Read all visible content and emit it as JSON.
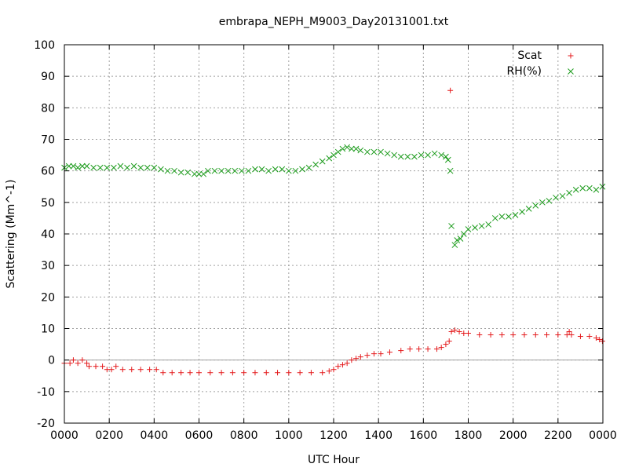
{
  "chart_data": {
    "type": "scatter",
    "title": "embrapa_NEPH_M9003_Day20131001.txt",
    "xlabel": "UTC Hour",
    "ylabel": "Scattering (Mm^-1)",
    "xlim": [
      0,
      2400
    ],
    "ylim": [
      -20,
      100
    ],
    "x_ticks": [
      "0000",
      "0200",
      "0400",
      "0600",
      "0800",
      "1000",
      "1200",
      "1400",
      "1600",
      "1800",
      "2000",
      "2200",
      "0000"
    ],
    "y_ticks": [
      "-20",
      "-10",
      "0",
      "10",
      "20",
      "30",
      "40",
      "50",
      "60",
      "70",
      "80",
      "90",
      "100"
    ],
    "grid": true,
    "legend_position": "top-right",
    "series": [
      {
        "name": "Scat",
        "marker": "+",
        "color": "#e41a1c",
        "points": [
          [
            0,
            -1
          ],
          [
            25,
            -1
          ],
          [
            40,
            0
          ],
          [
            60,
            -1
          ],
          [
            80,
            0
          ],
          [
            100,
            -1
          ],
          [
            110,
            -2
          ],
          [
            140,
            -2
          ],
          [
            170,
            -2
          ],
          [
            190,
            -3
          ],
          [
            210,
            -3
          ],
          [
            230,
            -2
          ],
          [
            260,
            -3
          ],
          [
            300,
            -3
          ],
          [
            340,
            -3
          ],
          [
            380,
            -3
          ],
          [
            410,
            -3
          ],
          [
            440,
            -4
          ],
          [
            480,
            -4
          ],
          [
            520,
            -4
          ],
          [
            560,
            -4
          ],
          [
            600,
            -4
          ],
          [
            650,
            -4
          ],
          [
            700,
            -4
          ],
          [
            750,
            -4
          ],
          [
            800,
            -4
          ],
          [
            850,
            -4
          ],
          [
            900,
            -4
          ],
          [
            950,
            -4
          ],
          [
            1000,
            -4
          ],
          [
            1050,
            -4
          ],
          [
            1100,
            -4
          ],
          [
            1150,
            -4
          ],
          [
            1180,
            -3.5
          ],
          [
            1200,
            -3
          ],
          [
            1220,
            -2
          ],
          [
            1240,
            -1.5
          ],
          [
            1260,
            -1
          ],
          [
            1280,
            0
          ],
          [
            1300,
            0.5
          ],
          [
            1320,
            1
          ],
          [
            1350,
            1.5
          ],
          [
            1380,
            2
          ],
          [
            1410,
            2
          ],
          [
            1450,
            2.5
          ],
          [
            1500,
            3
          ],
          [
            1540,
            3.5
          ],
          [
            1580,
            3.5
          ],
          [
            1620,
            3.5
          ],
          [
            1660,
            3.5
          ],
          [
            1680,
            4
          ],
          [
            1700,
            5
          ],
          [
            1715,
            6
          ],
          [
            1720,
            85.5
          ],
          [
            1725,
            9
          ],
          [
            1740,
            9.5
          ],
          [
            1760,
            9
          ],
          [
            1780,
            8.5
          ],
          [
            1800,
            8.5
          ],
          [
            1850,
            8
          ],
          [
            1900,
            8
          ],
          [
            1950,
            8
          ],
          [
            2000,
            8
          ],
          [
            2050,
            8
          ],
          [
            2100,
            8
          ],
          [
            2150,
            8
          ],
          [
            2200,
            8
          ],
          [
            2240,
            8
          ],
          [
            2250,
            9
          ],
          [
            2260,
            8
          ],
          [
            2300,
            7.5
          ],
          [
            2340,
            7.5
          ],
          [
            2370,
            7
          ],
          [
            2385,
            6.5
          ],
          [
            2398,
            6
          ]
        ]
      },
      {
        "name": "RH(%)",
        "marker": "x",
        "color": "#1a9a1a",
        "points": [
          [
            0,
            61
          ],
          [
            20,
            61.5
          ],
          [
            40,
            61.5
          ],
          [
            60,
            61
          ],
          [
            80,
            61.5
          ],
          [
            100,
            61.5
          ],
          [
            130,
            61
          ],
          [
            160,
            61
          ],
          [
            190,
            61
          ],
          [
            220,
            61
          ],
          [
            250,
            61.5
          ],
          [
            280,
            61
          ],
          [
            310,
            61.5
          ],
          [
            340,
            61
          ],
          [
            370,
            61
          ],
          [
            400,
            61
          ],
          [
            430,
            60.5
          ],
          [
            460,
            60
          ],
          [
            490,
            60
          ],
          [
            520,
            59.5
          ],
          [
            550,
            59.5
          ],
          [
            580,
            59
          ],
          [
            600,
            59
          ],
          [
            620,
            59
          ],
          [
            640,
            60
          ],
          [
            670,
            60
          ],
          [
            700,
            60
          ],
          [
            730,
            60
          ],
          [
            760,
            60
          ],
          [
            790,
            60
          ],
          [
            820,
            60
          ],
          [
            850,
            60.5
          ],
          [
            880,
            60.5
          ],
          [
            910,
            60
          ],
          [
            940,
            60.5
          ],
          [
            970,
            60.5
          ],
          [
            1000,
            60
          ],
          [
            1030,
            60
          ],
          [
            1060,
            60.5
          ],
          [
            1090,
            61
          ],
          [
            1120,
            62
          ],
          [
            1150,
            63
          ],
          [
            1180,
            64
          ],
          [
            1200,
            65
          ],
          [
            1220,
            66
          ],
          [
            1240,
            67
          ],
          [
            1260,
            67.5
          ],
          [
            1280,
            67
          ],
          [
            1300,
            67
          ],
          [
            1320,
            66.5
          ],
          [
            1350,
            66
          ],
          [
            1380,
            66
          ],
          [
            1410,
            66
          ],
          [
            1440,
            65.5
          ],
          [
            1470,
            65
          ],
          [
            1500,
            64.5
          ],
          [
            1530,
            64.5
          ],
          [
            1560,
            64.5
          ],
          [
            1590,
            65
          ],
          [
            1620,
            65
          ],
          [
            1650,
            65.5
          ],
          [
            1680,
            65
          ],
          [
            1700,
            64.5
          ],
          [
            1710,
            63.5
          ],
          [
            1720,
            60
          ],
          [
            1725,
            42.5
          ],
          [
            1740,
            36.5
          ],
          [
            1750,
            38
          ],
          [
            1765,
            38.5
          ],
          [
            1780,
            40
          ],
          [
            1800,
            41.5
          ],
          [
            1830,
            42
          ],
          [
            1860,
            42.5
          ],
          [
            1890,
            43
          ],
          [
            1920,
            45
          ],
          [
            1950,
            45.5
          ],
          [
            1980,
            45.5
          ],
          [
            2010,
            46
          ],
          [
            2040,
            47
          ],
          [
            2070,
            48
          ],
          [
            2100,
            49
          ],
          [
            2130,
            50
          ],
          [
            2160,
            50.5
          ],
          [
            2190,
            51.5
          ],
          [
            2220,
            52
          ],
          [
            2250,
            53
          ],
          [
            2280,
            54
          ],
          [
            2310,
            54.5
          ],
          [
            2340,
            54.5
          ],
          [
            2370,
            54
          ],
          [
            2398,
            55
          ]
        ]
      }
    ]
  }
}
